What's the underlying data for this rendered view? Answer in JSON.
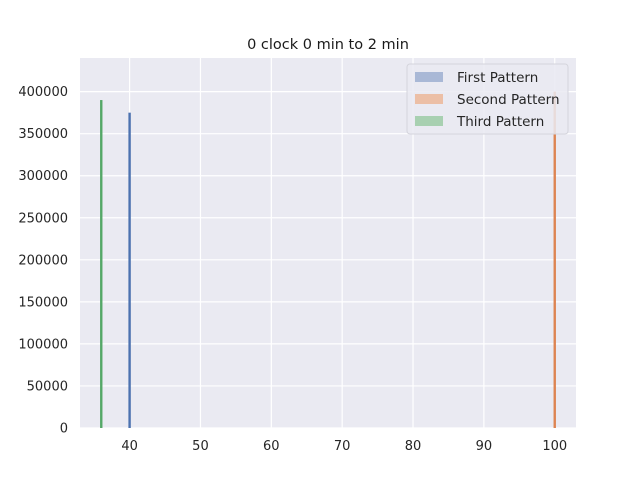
{
  "chart_data": {
    "type": "bar",
    "title": "0 clock 0 min to 2 min",
    "xlabel": "",
    "ylabel": "",
    "xlim": [
      33,
      103
    ],
    "ylim": [
      0,
      440000
    ],
    "grid": true,
    "legend_position": "top-right",
    "x_ticks": [
      {
        "value": 40,
        "label": "40"
      },
      {
        "value": 50,
        "label": "50"
      },
      {
        "value": 60,
        "label": "60"
      },
      {
        "value": 70,
        "label": "70"
      },
      {
        "value": 80,
        "label": "80"
      },
      {
        "value": 90,
        "label": "90"
      },
      {
        "value": 100,
        "label": "100"
      }
    ],
    "y_ticks": [
      {
        "value": 0,
        "label": "0"
      },
      {
        "value": 50000,
        "label": "50000"
      },
      {
        "value": 100000,
        "label": "100000"
      },
      {
        "value": 150000,
        "label": "150000"
      },
      {
        "value": 200000,
        "label": "200000"
      },
      {
        "value": 250000,
        "label": "250000"
      },
      {
        "value": 300000,
        "label": "300000"
      },
      {
        "value": 350000,
        "label": "350000"
      },
      {
        "value": 400000,
        "label": "400000"
      }
    ],
    "series": [
      {
        "name": "First Pattern",
        "color": "#4c72b0",
        "legend_color": "#a9b8d6",
        "x": [
          40
        ],
        "values": [
          375000
        ]
      },
      {
        "name": "Second Pattern",
        "color": "#dd8452",
        "legend_color": "#ecbfa6",
        "x": [
          100
        ],
        "values": [
          400000
        ]
      },
      {
        "name": "Third Pattern",
        "color": "#55a868",
        "legend_color": "#a8d0b1",
        "x": [
          36
        ],
        "values": [
          390000
        ]
      }
    ]
  }
}
